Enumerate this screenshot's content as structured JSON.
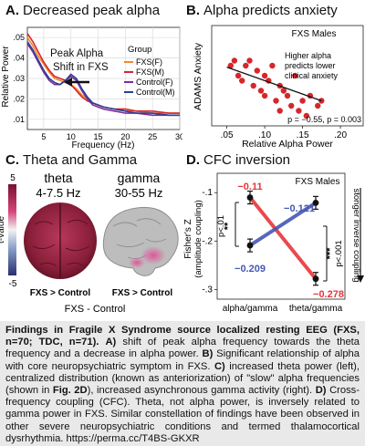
{
  "panels": {
    "a": {
      "letter": "A.",
      "title": "Decreased peak alpha",
      "ylabel": "Relative Power",
      "xlabel": "Frequency (Hz)",
      "yticks": [
        ".01",
        ".02",
        ".03",
        ".04",
        ".05"
      ],
      "xticks": [
        "5",
        "10",
        "15",
        "20",
        "25",
        "30"
      ],
      "annotation_line1": "Peak Alpha",
      "annotation_line2": "Shift in FXS",
      "legend_title": "Group",
      "legend": [
        {
          "label": "FXS(F)",
          "color": "#f08a2a"
        },
        {
          "label": "FXS(M)",
          "color": "#d7262b"
        },
        {
          "label": "Control(F)",
          "color": "#7a2f9a"
        },
        {
          "label": "Control(M)",
          "color": "#2c3e98"
        }
      ]
    },
    "b": {
      "letter": "B.",
      "title": "Alpha predicts anxiety",
      "ylabel": "ADAMS Anxiety",
      "xlabel": "Relative Alpha Power",
      "xticks": [
        ".05",
        ".10",
        ".15",
        ".20"
      ],
      "subset": "FXS Males",
      "note_line1": "Higher alpha",
      "note_line2": "predicts lower",
      "note_line3": "clinical anxiety",
      "stats": "p = −0.55, p = 0.003"
    },
    "c": {
      "letter": "C.",
      "title": "Theta and Gamma",
      "colorbar_max": "5",
      "colorbar_min": "-5",
      "colorbar_label": "t-value",
      "theta_label": "theta",
      "theta_range": "4-7.5 Hz",
      "gamma_label": "gamma",
      "gamma_range": "30-55 Hz",
      "left_compare": "FXS > Control",
      "right_compare": "FXS > Control",
      "bottom_label": "FXS - Control"
    },
    "d": {
      "letter": "D.",
      "title": "CFC inversion",
      "subset": "FXS Males",
      "ylabel_line1": "Fisher's Z",
      "ylabel_line2": "(amplitude coupling)",
      "yticks": [
        "-.1",
        "-.2",
        "-.3"
      ],
      "xticks": [
        "alpha/gamma",
        "theta/gamma"
      ],
      "red_label_1": "−0.11",
      "blue_label_1": "−0.209",
      "blue_label_2": "−0.121",
      "red_label_2": "−0.278",
      "sig_left_stars": "**",
      "sig_left_p": "p<.01",
      "sig_right_stars": "***",
      "sig_right_p": "p<.001",
      "side_label": "stonger inverse coupling"
    }
  },
  "chart_data": [
    {
      "type": "line",
      "xlabel": "Frequency (Hz)",
      "ylabel": "Relative Power",
      "xlim": [
        2,
        30
      ],
      "ylim": [
        0.005,
        0.055
      ],
      "x": [
        2,
        3,
        4,
        5,
        6,
        7,
        8,
        9,
        10,
        11,
        12,
        13,
        14,
        16,
        18,
        20,
        22,
        25,
        28,
        30
      ],
      "series": [
        {
          "name": "FXS(F)",
          "values": [
            0.05,
            0.046,
            0.041,
            0.037,
            0.033,
            0.03,
            0.029,
            0.028,
            0.027,
            0.025,
            0.022,
            0.02,
            0.018,
            0.016,
            0.015,
            0.014,
            0.014,
            0.013,
            0.013,
            0.013
          ]
        },
        {
          "name": "FXS(M)",
          "values": [
            0.052,
            0.048,
            0.043,
            0.038,
            0.034,
            0.031,
            0.03,
            0.029,
            0.027,
            0.024,
            0.021,
            0.019,
            0.018,
            0.016,
            0.015,
            0.015,
            0.014,
            0.014,
            0.013,
            0.013
          ]
        },
        {
          "name": "Control(F)",
          "values": [
            0.047,
            0.043,
            0.038,
            0.033,
            0.029,
            0.027,
            0.027,
            0.029,
            0.031,
            0.029,
            0.024,
            0.02,
            0.017,
            0.015,
            0.014,
            0.013,
            0.013,
            0.012,
            0.012,
            0.012
          ]
        },
        {
          "name": "Control(M)",
          "values": [
            0.048,
            0.044,
            0.039,
            0.034,
            0.03,
            0.028,
            0.027,
            0.029,
            0.032,
            0.03,
            0.025,
            0.021,
            0.018,
            0.016,
            0.015,
            0.014,
            0.013,
            0.013,
            0.012,
            0.012
          ]
        }
      ]
    },
    {
      "type": "scatter",
      "xlabel": "Relative Alpha Power",
      "ylabel": "ADAMS Anxiety",
      "xlim": [
        0.03,
        0.23
      ],
      "ylim": [
        0,
        20
      ],
      "points": [
        [
          0.055,
          12
        ],
        [
          0.06,
          13
        ],
        [
          0.065,
          10
        ],
        [
          0.07,
          9
        ],
        [
          0.075,
          12
        ],
        [
          0.08,
          13
        ],
        [
          0.085,
          8
        ],
        [
          0.09,
          11
        ],
        [
          0.095,
          7
        ],
        [
          0.1,
          10
        ],
        [
          0.1,
          6
        ],
        [
          0.105,
          9
        ],
        [
          0.11,
          12
        ],
        [
          0.115,
          5
        ],
        [
          0.12,
          8
        ],
        [
          0.12,
          3
        ],
        [
          0.125,
          7
        ],
        [
          0.13,
          6
        ],
        [
          0.135,
          4
        ],
        [
          0.14,
          10
        ],
        [
          0.145,
          3
        ],
        [
          0.15,
          5
        ],
        [
          0.155,
          2
        ],
        [
          0.16,
          6
        ],
        [
          0.17,
          4
        ],
        [
          0.175,
          5
        ]
      ],
      "fit": [
        [
          0.05,
          11.7
        ],
        [
          0.175,
          5.0
        ]
      ]
    },
    {
      "type": "line",
      "ylabel": "Fisher's Z (amplitude coupling)",
      "categories": [
        "alpha/gamma",
        "theta/gamma"
      ],
      "ylim": [
        -0.32,
        -0.06
      ],
      "series": [
        {
          "name": "FXS",
          "color": "#e8353a",
          "values": [
            -0.11,
            -0.278
          ]
        },
        {
          "name": "Control",
          "color": "#4757b3",
          "values": [
            -0.209,
            -0.121
          ]
        }
      ]
    }
  ],
  "caption": {
    "bold": "Findings in Fragile X Syndrome source localized resting EEG (FXS, n=70; TDC, n=71).",
    "a_label": "A)",
    "a_text": "shift of peak alpha frequency towards the theta frequency and a decrease in alpha power.",
    "b_label": "B)",
    "b_text": "Significant relationship of alpha with core neuropsychiatric symptom in FXS.",
    "c_label": "C)",
    "c_text": "increased theta power (left), centralized distribution (known as anteriorization) of \"slow\" alpha frequencies (shown in",
    "fig_ref": "Fig. 2D",
    "c_text2": "), increased asynchronous gamma activity (right).",
    "d_label": "D)",
    "d_text": "Cross-frequency coupling (CFC). Theta, not alpha power, is inversely related to gamma power in FXS. Similar constellation of findings have been observed in other severe neuropsychiatric conditions and termed thalamocortical dysrhythmia. https://perma.cc/T4BS-GKXR"
  }
}
